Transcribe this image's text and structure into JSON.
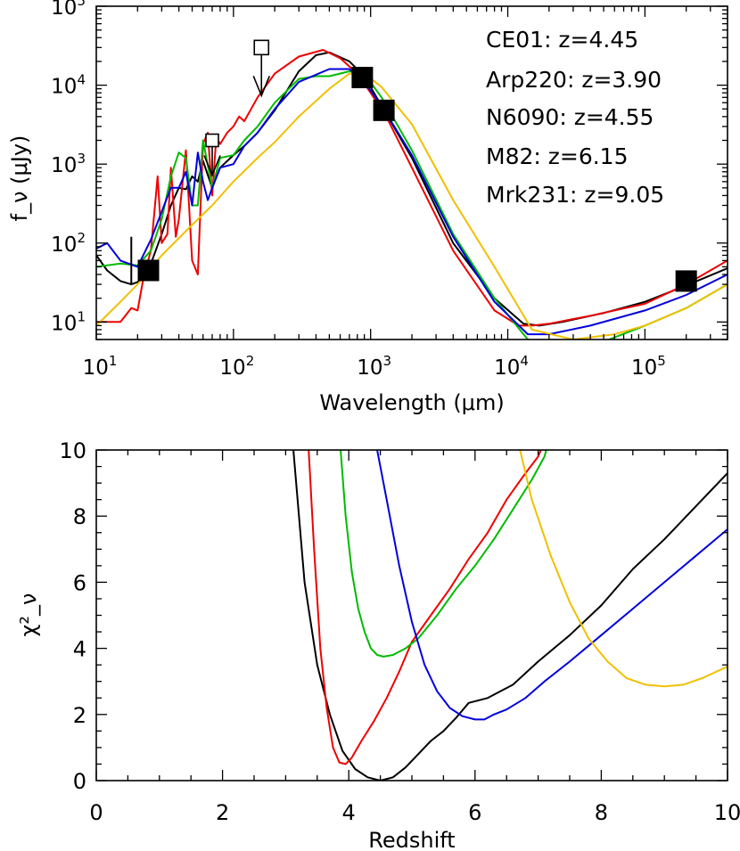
{
  "chart_data": [
    {
      "type": "line",
      "title": "",
      "xlabel": "Wavelength (μm)",
      "ylabel": "f_ν (μJy)",
      "xscale": "log",
      "yscale": "log",
      "xlim": [
        10,
        400000
      ],
      "ylim": [
        6,
        100000
      ],
      "x_tick_labels": [
        "10^1",
        "10^2",
        "10^3",
        "10^4",
        "10^5"
      ],
      "y_tick_labels": [
        "10^1",
        "10^2",
        "10^3",
        "10^4",
        "10^5"
      ],
      "legend_position": "top-right",
      "series": [
        {
          "name": "CE01",
          "label": "CE01: z=4.45",
          "color": "#000000",
          "x": [
            10,
            12,
            15,
            18,
            20,
            24,
            30,
            35,
            40,
            45,
            50,
            55,
            60,
            70,
            80,
            100,
            120,
            150,
            200,
            300,
            400,
            500,
            700,
            900,
            1200,
            2000,
            4000,
            8000,
            13000,
            17000,
            25000,
            50000,
            100000,
            200000,
            400000
          ],
          "y": [
            70,
            45,
            33,
            30,
            32,
            45,
            130,
            300,
            500,
            480,
            700,
            600,
            1100,
            500,
            900,
            1300,
            1700,
            2500,
            4800,
            15000,
            24000,
            26000,
            20000,
            13000,
            5500,
            1200,
            100,
            20,
            9.5,
            9,
            10,
            13,
            18,
            29,
            48
          ]
        },
        {
          "name": "Arp220",
          "label": "Arp220: z=3.90",
          "color": "#ee0000",
          "x": [
            10,
            15,
            18,
            20,
            22,
            25,
            28,
            30,
            33,
            35,
            38,
            40,
            45,
            50,
            55,
            60,
            65,
            70,
            75,
            80,
            90,
            100,
            110,
            120,
            150,
            200,
            300,
            450,
            600,
            800,
            1000,
            1300,
            2000,
            4000,
            8000,
            12000,
            15000,
            20000,
            40000,
            100000,
            200000,
            400000
          ],
          "y": [
            10,
            10,
            15,
            14,
            35,
            80,
            700,
            100,
            130,
            900,
            120,
            200,
            1500,
            60,
            40,
            1800,
            2500,
            400,
            2200,
            1800,
            2500,
            3000,
            4000,
            3500,
            7000,
            14000,
            23000,
            28000,
            22000,
            14000,
            8000,
            4000,
            900,
            80,
            14,
            9,
            9,
            9.5,
            12,
            17,
            30,
            60
          ]
        },
        {
          "name": "N6090",
          "label": "N6090: z=4.55",
          "color": "#00bb00",
          "x": [
            10,
            15,
            20,
            25,
            30,
            35,
            40,
            45,
            50,
            55,
            60,
            70,
            80,
            100,
            120,
            150,
            200,
            300,
            400,
            500,
            700,
            900,
            1200,
            2000,
            4000,
            8000,
            14000,
            20000,
            30000,
            100000,
            200000,
            400000
          ],
          "y": [
            50,
            55,
            52,
            80,
            200,
            700,
            1400,
            1200,
            300,
            300,
            2000,
            500,
            1200,
            1300,
            2000,
            3000,
            6000,
            12000,
            13000,
            13000,
            15000,
            14000,
            7000,
            1500,
            130,
            20,
            6,
            5,
            4,
            9,
            15,
            30
          ]
        },
        {
          "name": "M82",
          "label": "M82: z=6.15",
          "color": "#0000dd",
          "x": [
            10,
            12,
            15,
            20,
            25,
            30,
            35,
            40,
            45,
            50,
            55,
            60,
            65,
            70,
            80,
            100,
            120,
            150,
            200,
            300,
            500,
            700,
            900,
            1200,
            2000,
            4000,
            8000,
            14000,
            20000,
            40000,
            100000,
            200000,
            400000
          ],
          "y": [
            85,
            100,
            60,
            50,
            110,
            250,
            500,
            500,
            800,
            300,
            1400,
            600,
            350,
            500,
            900,
            1000,
            1700,
            2500,
            5000,
            11000,
            16000,
            16000,
            11000,
            5500,
            1300,
            120,
            18,
            7,
            7,
            9,
            14,
            22,
            40
          ]
        },
        {
          "name": "Mrk231",
          "label": "Mrk231: z=9.05",
          "color": "#f0c000",
          "x": [
            10,
            15,
            20,
            30,
            50,
            70,
            100,
            150,
            200,
            300,
            500,
            700,
            900,
            1200,
            2000,
            4000,
            8000,
            15000,
            30000,
            60000,
            100000,
            200000,
            400000
          ],
          "y": [
            9,
            18,
            30,
            70,
            170,
            300,
            600,
            1200,
            1900,
            4000,
            9000,
            14000,
            14000,
            9500,
            3200,
            350,
            50,
            8,
            6,
            7,
            9,
            15,
            30
          ]
        }
      ],
      "markers": [
        {
          "kind": "detection",
          "x": 24,
          "y": 45
        },
        {
          "kind": "detection",
          "x": 870,
          "y": 12500
        },
        {
          "kind": "detection",
          "x": 1250,
          "y": 4800
        },
        {
          "kind": "detection",
          "x": 200000,
          "y": 33
        },
        {
          "kind": "upper_limit",
          "x": 160,
          "y": 30000
        },
        {
          "kind": "upper_limit",
          "x": 70,
          "y": 2000
        }
      ],
      "error_bars": [
        {
          "x": 18,
          "y_low": 30,
          "y_high": 120
        }
      ]
    },
    {
      "type": "line",
      "title": "",
      "xlabel": "Redshift",
      "ylabel": "χ²_ν",
      "xlim": [
        0,
        10
      ],
      "ylim": [
        0,
        10
      ],
      "x_ticks": [
        0,
        2,
        4,
        6,
        8,
        10
      ],
      "y_ticks": [
        0,
        2,
        4,
        6,
        8,
        10
      ],
      "series": [
        {
          "name": "CE01",
          "color": "#000000",
          "x": [
            3.1,
            3.3,
            3.5,
            3.7,
            3.9,
            4.1,
            4.3,
            4.5,
            4.7,
            4.9,
            5.1,
            5.3,
            5.5,
            5.7,
            5.9,
            6.2,
            6.6,
            7.0,
            7.5,
            8.0,
            8.5,
            9.0,
            9.5,
            10.0
          ],
          "y": [
            10.5,
            6.0,
            3.5,
            2.0,
            0.9,
            0.35,
            0.1,
            0.0,
            0.1,
            0.4,
            0.8,
            1.2,
            1.5,
            1.9,
            2.35,
            2.5,
            2.9,
            3.6,
            4.4,
            5.3,
            6.4,
            7.3,
            8.3,
            9.3
          ]
        },
        {
          "name": "Arp220",
          "color": "#ee0000",
          "x": [
            3.35,
            3.45,
            3.55,
            3.65,
            3.75,
            3.85,
            3.95,
            4.05,
            4.2,
            4.4,
            4.6,
            4.8,
            5.0,
            5.3,
            5.6,
            5.9,
            6.2,
            6.5,
            6.8,
            7.0,
            7.15
          ],
          "y": [
            10.5,
            7.0,
            4.0,
            2.2,
            1.0,
            0.55,
            0.5,
            0.7,
            1.2,
            1.8,
            2.5,
            3.3,
            4.2,
            5.0,
            5.8,
            6.7,
            7.5,
            8.5,
            9.3,
            9.8,
            10.5
          ]
        },
        {
          "name": "N6090",
          "color": "#00bb00",
          "x": [
            3.85,
            3.95,
            4.05,
            4.15,
            4.25,
            4.35,
            4.45,
            4.55,
            4.7,
            4.9,
            5.1,
            5.4,
            5.7,
            6.0,
            6.3,
            6.6,
            6.9,
            7.1,
            7.2
          ],
          "y": [
            10.5,
            8.0,
            6.3,
            5.2,
            4.5,
            4.0,
            3.8,
            3.75,
            3.8,
            4.0,
            4.3,
            5.0,
            5.8,
            6.5,
            7.3,
            8.2,
            9.1,
            9.8,
            10.5
          ]
        },
        {
          "name": "M82",
          "color": "#0000dd",
          "x": [
            4.4,
            4.6,
            4.8,
            5.0,
            5.2,
            5.4,
            5.6,
            5.8,
            6.0,
            6.15,
            6.3,
            6.5,
            6.8,
            7.1,
            7.5,
            8.0,
            8.5,
            9.0,
            9.5,
            10.0
          ],
          "y": [
            10.5,
            8.5,
            6.5,
            4.8,
            3.5,
            2.7,
            2.2,
            1.95,
            1.85,
            1.85,
            2.0,
            2.15,
            2.5,
            3.0,
            3.6,
            4.4,
            5.2,
            6.0,
            6.8,
            7.6
          ]
        },
        {
          "name": "Mrk231",
          "color": "#f0c000",
          "x": [
            6.65,
            6.9,
            7.2,
            7.5,
            7.8,
            8.1,
            8.4,
            8.7,
            9.0,
            9.3,
            9.6,
            10.0
          ],
          "y": [
            10.5,
            8.5,
            6.8,
            5.4,
            4.3,
            3.6,
            3.1,
            2.9,
            2.85,
            2.9,
            3.1,
            3.45
          ]
        }
      ]
    }
  ]
}
